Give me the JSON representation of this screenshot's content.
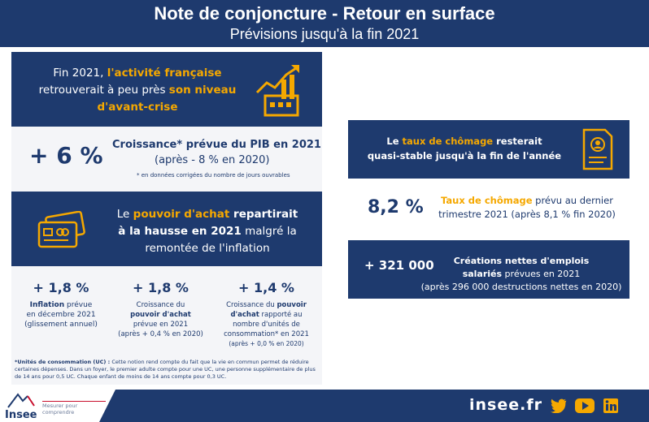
{
  "header": {
    "title": "Note de conjoncture - Retour en surface",
    "subtitle": "Prévisions jusqu'à la fin 2021"
  },
  "activity": {
    "line1_a": "Fin 2021, ",
    "line1_b": "l'activité française",
    "line2_a": "retrouverait à peu près ",
    "line2_b": "son niveau",
    "line3": "d'avant-crise"
  },
  "gdp": {
    "value": "+ 6 %",
    "label": "Croissance* prévue du PIB en 2021",
    "sub": "(après - 8 % en 2020)",
    "note": "* en données corrigées du nombre de jours ouvrables"
  },
  "purchasing": {
    "line1_a": "Le ",
    "line1_b": "pouvoir d'achat",
    "line1_c": " repartirait",
    "line2_a": "à la hausse en 2021",
    "line2_b": " malgré la",
    "line3": "remontée de l'inflation"
  },
  "stats": [
    {
      "value": "+ 1,8 %",
      "l1b": "Inflation",
      "l1": " prévue",
      "l2": "en décembre 2021",
      "l3": "(glissement annuel)"
    },
    {
      "value": "+ 1,8 %",
      "l1": "Croissance du",
      "l2b": "pouvoir d'achat",
      "l3": "prévue en 2021",
      "l4": "(après + 0,4 % en 2020)"
    },
    {
      "value": "+ 1,4 %",
      "l1": "Croissance du ",
      "l1b": "pouvoir",
      "l2b": "d'achat",
      "l2": " rapporté au",
      "l3": "nombre d'unités de",
      "l4": "consommation* en 2021",
      "l5": "(après + 0,0 % en 2020)"
    }
  ],
  "uc_note": {
    "bold": "*Unités de consommation (UC) :",
    "text": " Cette notion rend compte du fait que la vie en commun permet de réduire certaines dépenses. Dans un foyer, le premier adulte compte pour une UC, une personne supplémentaire de plus de 14 ans pour 0,5 UC. Chaque enfant de moins de 14 ans compte pour 0,3 UC."
  },
  "unemployment": {
    "line1_a": "Le ",
    "line1_b": "taux de chômage",
    "line1_c": " resterait",
    "line2": "quasi-stable jusqu'à la fin de l'année",
    "value": "8,2 %",
    "label_a": "Taux de chômage",
    "label_b": " prévu au dernier",
    "label_c": "trimestre 2021 (après 8,1 % fin 2020)"
  },
  "jobs": {
    "value": "+ 321 000",
    "l1": "Créations nettes d'emplois",
    "l2b": "salariés",
    "l2": " prévues en 2021",
    "l3": "(après 296 000 destructions nettes en 2020)"
  },
  "footer": {
    "logo": "Insee",
    "tagline": "Mesurer pour comprendre",
    "site": "insee.fr"
  },
  "colors": {
    "navy": "#1e3a6e",
    "orange": "#f5a800"
  }
}
